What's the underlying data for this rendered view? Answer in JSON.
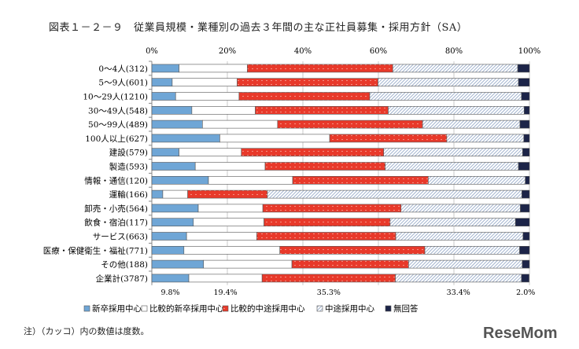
{
  "title": "図表１－２－９　従業員規模・業種別の過去３年間の主な正社員募集・採用方針（SA）",
  "note": "注）（カッコ）内の数値は度数。",
  "logo_text": "ReseMom",
  "colors": {
    "新卒採用中心": "#6fa6d6",
    "比較的新卒採用中心": "#ffffff",
    "比較的中途採用中心": "#e8392a",
    "中途採用中心": "#9fb3cf",
    "無回答": "#1c2448"
  },
  "chart_data": {
    "type": "bar",
    "orientation": "horizontal",
    "stacked": "100%",
    "xlim": [
      0,
      100
    ],
    "x_ticks": [
      "0%",
      "20%",
      "40%",
      "60%",
      "80%",
      "100%"
    ],
    "grid": true,
    "legend_position": "bottom",
    "categories": [
      "0～4人(312)",
      "5～9人(601)",
      "10～29人(1210)",
      "30～49人(548)",
      "50～99人(489)",
      "100人以上(627)",
      "建設(579)",
      "製造(593)",
      "情報・通信(120)",
      "運輸(166)",
      "卸売・小売(564)",
      "飲食・宿泊(117)",
      "サービス(663)",
      "医療・保健衛生・福祉(771)",
      "その他(188)",
      "企業計(3787)"
    ],
    "series": [
      {
        "name": "新卒採用中心",
        "values": [
          7.2,
          5.4,
          6.3,
          10.6,
          13.4,
          18.0,
          7.2,
          11.5,
          15.0,
          2.9,
          12.3,
          11.0,
          9.2,
          8.5,
          13.7,
          9.8
        ]
      },
      {
        "name": "比較的新卒採用中心",
        "values": [
          18.1,
          17.2,
          16.8,
          16.8,
          19.9,
          29.1,
          16.5,
          18.5,
          22.3,
          6.6,
          17.1,
          18.7,
          18.6,
          25.4,
          23.4,
          19.4
        ]
      },
      {
        "name": "比較的中途採用中心",
        "values": [
          38.5,
          37.3,
          34.6,
          35.2,
          38.4,
          31.0,
          37.7,
          31.8,
          35.9,
          21.1,
          36.6,
          33.4,
          36.8,
          38.4,
          30.9,
          35.3
        ]
      },
      {
        "name": "中途採用中心",
        "values": [
          33.1,
          37.2,
          40.2,
          36.0,
          25.8,
          20.4,
          36.8,
          35.3,
          25.7,
          67.4,
          31.6,
          33.2,
          33.7,
          25.1,
          30.1,
          33.4
        ]
      },
      {
        "name": "無回答",
        "values": [
          3.1,
          2.9,
          2.1,
          1.4,
          2.5,
          1.5,
          1.8,
          2.9,
          1.1,
          2.0,
          2.4,
          3.7,
          1.7,
          2.6,
          1.9,
          2.0
        ]
      }
    ],
    "data_labels": {
      "category": "企業計(3787)",
      "labels": [
        "9.8%",
        "19.4%",
        "35.3%",
        "33.4%",
        "2.0%"
      ]
    }
  }
}
